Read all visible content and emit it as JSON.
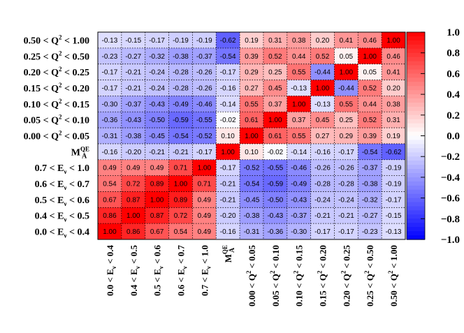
{
  "chart_data": {
    "type": "heatmap",
    "title": "",
    "row_labels": [
      {
        "pre": "0.50 < Q",
        "sup": "2",
        "post": " < 1.00"
      },
      {
        "pre": "0.25 < Q",
        "sup": "2",
        "post": " < 0.50"
      },
      {
        "pre": "0.20 < Q",
        "sup": "2",
        "post": " < 0.25"
      },
      {
        "pre": "0.15 < Q",
        "sup": "2",
        "post": " < 0.20"
      },
      {
        "pre": "0.10 < Q",
        "sup": "2",
        "post": " < 0.15"
      },
      {
        "pre": "0.05 < Q",
        "sup": "2",
        "post": " < 0.10"
      },
      {
        "pre": "0.00 < Q",
        "sup": "2",
        "post": " < 0.05"
      },
      {
        "pre": "M",
        "sup": "QE",
        "sub": "A",
        "post": ""
      },
      {
        "pre": "0.7 < E",
        "sub": "ν",
        "post": " < 1.0"
      },
      {
        "pre": "0.6 < E",
        "sub": "ν",
        "post": " < 0.7"
      },
      {
        "pre": "0.5 < E",
        "sub": "ν",
        "post": " < 0.6"
      },
      {
        "pre": "0.4 < E",
        "sub": "ν",
        "post": " < 0.5"
      },
      {
        "pre": "0.0 < E",
        "sub": "ν",
        "post": " < 0.4"
      }
    ],
    "column_labels": [
      {
        "pre": "0.0 < E",
        "sub": "ν",
        "post": " < 0.4"
      },
      {
        "pre": "0.4 < E",
        "sub": "ν",
        "post": " < 0.5"
      },
      {
        "pre": "0.5 < E",
        "sub": "ν",
        "post": " < 0.6"
      },
      {
        "pre": "0.6 < E",
        "sub": "ν",
        "post": " < 0.7"
      },
      {
        "pre": "0.7 < E",
        "sub": "ν",
        "post": " < 1.0"
      },
      {
        "pre": "M",
        "sup": "QE",
        "sub": "A",
        "post": ""
      },
      {
        "pre": "0.00 < Q",
        "sup": "2",
        "post": " < 0.05"
      },
      {
        "pre": "0.05 < Q",
        "sup": "2",
        "post": " < 0.10"
      },
      {
        "pre": "0.10 < Q",
        "sup": "2",
        "post": " < 0.15"
      },
      {
        "pre": "0.15 < Q",
        "sup": "2",
        "post": " < 0.20"
      },
      {
        "pre": "0.20 < Q",
        "sup": "2",
        "post": " < 0.25"
      },
      {
        "pre": "0.25 < Q",
        "sup": "2",
        "post": " < 0.50"
      },
      {
        "pre": "0.50 < Q",
        "sup": "2",
        "post": " < 1.00"
      }
    ],
    "values": [
      [
        "-0.13",
        "-0.15",
        "-0.17",
        "-0.19",
        "-0.19",
        "-0.62",
        "0.19",
        "0.31",
        "0.38",
        "0.20",
        "0.41",
        "0.46",
        "1.00"
      ],
      [
        "-0.23",
        "-0.27",
        "-0.32",
        "-0.38",
        "-0.37",
        "-0.54",
        "0.39",
        "0.52",
        "0.44",
        "0.52",
        "0.05",
        "1.00",
        "0.46"
      ],
      [
        "-0.17",
        "-0.21",
        "-0.24",
        "-0.28",
        "-0.26",
        "-0.17",
        "0.29",
        "0.25",
        "0.55",
        "-0.44",
        "1.00",
        "0.05",
        "0.41"
      ],
      [
        "-0.17",
        "-0.21",
        "-0.24",
        "-0.28",
        "-0.26",
        "-0.16",
        "0.27",
        "0.45",
        "-0.13",
        "1.00",
        "-0.44",
        "0.52",
        "0.20"
      ],
      [
        "-0.30",
        "-0.37",
        "-0.43",
        "-0.49",
        "-0.46",
        "-0.14",
        "0.55",
        "0.37",
        "1.00",
        "-0.13",
        "0.55",
        "0.44",
        "0.38"
      ],
      [
        "-0.36",
        "-0.43",
        "-0.50",
        "-0.59",
        "-0.55",
        "-0.02",
        "0.61",
        "1.00",
        "0.37",
        "0.45",
        "0.25",
        "0.52",
        "0.31"
      ],
      [
        "-0.31",
        "-0.38",
        "-0.45",
        "-0.54",
        "-0.52",
        "0.10",
        "1.00",
        "0.61",
        "0.55",
        "0.27",
        "0.29",
        "0.39",
        "0.19"
      ],
      [
        "-0.16",
        "-0.20",
        "-0.21",
        "-0.21",
        "-0.17",
        "1.00",
        "0.10",
        "-0.02",
        "-0.14",
        "-0.16",
        "-0.17",
        "-0.54",
        "-0.62"
      ],
      [
        "0.49",
        "0.49",
        "0.49",
        "0.71",
        "1.00",
        "-0.17",
        "-0.52",
        "-0.55",
        "-0.46",
        "-0.26",
        "-0.26",
        "-0.37",
        "-0.19"
      ],
      [
        "0.54",
        "0.72",
        "0.89",
        "1.00",
        "0.71",
        "-0.21",
        "-0.54",
        "-0.59",
        "-0.49",
        "-0.28",
        "-0.28",
        "-0.38",
        "-0.19"
      ],
      [
        "0.67",
        "0.87",
        "1.00",
        "0.89",
        "0.49",
        "-0.21",
        "-0.45",
        "-0.50",
        "-0.43",
        "-0.24",
        "-0.24",
        "-0.32",
        "-0.17"
      ],
      [
        "0.86",
        "1.00",
        "0.87",
        "0.72",
        "0.49",
        "-0.20",
        "-0.38",
        "-0.43",
        "-0.37",
        "-0.21",
        "-0.21",
        "-0.27",
        "-0.15"
      ],
      [
        "1.00",
        "0.86",
        "0.67",
        "0.54",
        "0.49",
        "-0.16",
        "-0.31",
        "-0.36",
        "-0.30",
        "-0.17",
        "-0.17",
        "-0.23",
        "-0.13"
      ]
    ],
    "colorbar": {
      "range": [
        -1.0,
        1.0
      ],
      "ticks": [
        "1.0",
        "0.8",
        "0.6",
        "0.4",
        "0.2",
        "0.0",
        "−0.2",
        "−0.4",
        "−0.6",
        "−0.8",
        "−1.0"
      ],
      "low_color": "#0000ff",
      "mid_color": "#ffffff",
      "high_color": "#ff0000"
    }
  }
}
